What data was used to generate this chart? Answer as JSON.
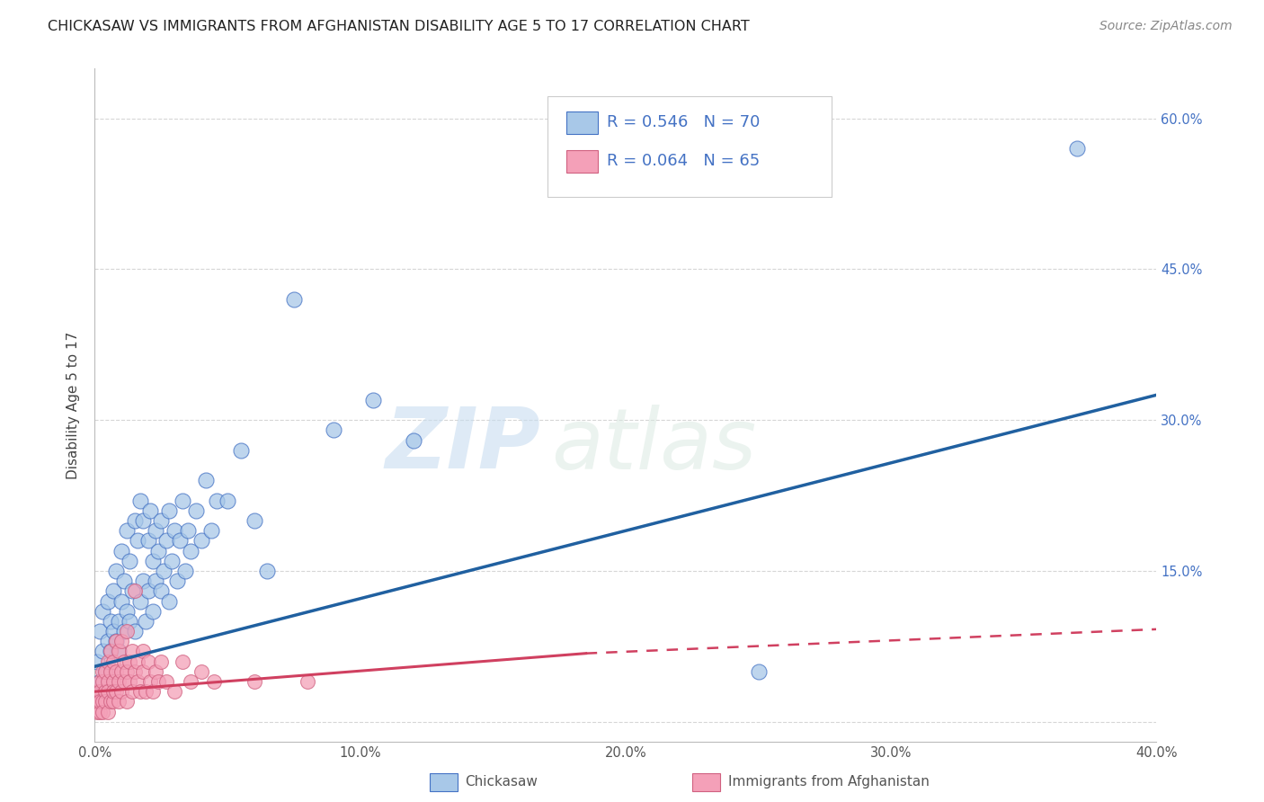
{
  "title": "CHICKASAW VS IMMIGRANTS FROM AFGHANISTAN DISABILITY AGE 5 TO 17 CORRELATION CHART",
  "source": "Source: ZipAtlas.com",
  "ylabel": "Disability Age 5 to 17",
  "legend_label1": "Chickasaw",
  "legend_label2": "Immigrants from Afghanistan",
  "R1": 0.546,
  "N1": 70,
  "R2": 0.064,
  "N2": 65,
  "color1": "#a8c8e8",
  "color2": "#f4a0b8",
  "edge_color1": "#4472c4",
  "edge_color2": "#d06080",
  "line_color1": "#2060a0",
  "line_color2": "#d04060",
  "watermark_color": "#d8e8f4",
  "xmin": 0.0,
  "xmax": 0.4,
  "ymin": -0.02,
  "ymax": 0.65,
  "xticks": [
    0.0,
    0.1,
    0.2,
    0.3,
    0.4
  ],
  "xtick_labels": [
    "0.0%",
    "10.0%",
    "20.0%",
    "30.0%",
    "40.0%"
  ],
  "yticks": [
    0.0,
    0.15,
    0.3,
    0.45,
    0.6
  ],
  "ytick_right_labels": [
    "",
    "15.0%",
    "30.0%",
    "45.0%",
    "60.0%"
  ],
  "blue_scatter_x": [
    0.001,
    0.002,
    0.002,
    0.003,
    0.003,
    0.004,
    0.005,
    0.005,
    0.006,
    0.006,
    0.007,
    0.007,
    0.008,
    0.008,
    0.009,
    0.009,
    0.01,
    0.01,
    0.011,
    0.011,
    0.012,
    0.012,
    0.013,
    0.013,
    0.014,
    0.015,
    0.015,
    0.016,
    0.017,
    0.017,
    0.018,
    0.018,
    0.019,
    0.02,
    0.02,
    0.021,
    0.022,
    0.022,
    0.023,
    0.023,
    0.024,
    0.025,
    0.025,
    0.026,
    0.027,
    0.028,
    0.028,
    0.029,
    0.03,
    0.031,
    0.032,
    0.033,
    0.034,
    0.035,
    0.036,
    0.038,
    0.04,
    0.042,
    0.044,
    0.046,
    0.05,
    0.055,
    0.06,
    0.065,
    0.075,
    0.09,
    0.105,
    0.12,
    0.25,
    0.37
  ],
  "blue_scatter_y": [
    0.06,
    0.04,
    0.09,
    0.07,
    0.11,
    0.05,
    0.08,
    0.12,
    0.07,
    0.1,
    0.09,
    0.13,
    0.08,
    0.15,
    0.1,
    0.07,
    0.12,
    0.17,
    0.09,
    0.14,
    0.11,
    0.19,
    0.1,
    0.16,
    0.13,
    0.2,
    0.09,
    0.18,
    0.12,
    0.22,
    0.14,
    0.2,
    0.1,
    0.18,
    0.13,
    0.21,
    0.16,
    0.11,
    0.19,
    0.14,
    0.17,
    0.13,
    0.2,
    0.15,
    0.18,
    0.21,
    0.12,
    0.16,
    0.19,
    0.14,
    0.18,
    0.22,
    0.15,
    0.19,
    0.17,
    0.21,
    0.18,
    0.24,
    0.19,
    0.22,
    0.22,
    0.27,
    0.2,
    0.15,
    0.42,
    0.29,
    0.32,
    0.28,
    0.05,
    0.57
  ],
  "pink_scatter_x": [
    0.001,
    0.001,
    0.001,
    0.002,
    0.002,
    0.002,
    0.002,
    0.003,
    0.003,
    0.003,
    0.003,
    0.004,
    0.004,
    0.004,
    0.005,
    0.005,
    0.005,
    0.005,
    0.006,
    0.006,
    0.006,
    0.007,
    0.007,
    0.007,
    0.007,
    0.008,
    0.008,
    0.008,
    0.009,
    0.009,
    0.009,
    0.01,
    0.01,
    0.01,
    0.011,
    0.011,
    0.012,
    0.012,
    0.012,
    0.013,
    0.013,
    0.014,
    0.014,
    0.015,
    0.015,
    0.016,
    0.016,
    0.017,
    0.018,
    0.018,
    0.019,
    0.02,
    0.021,
    0.022,
    0.023,
    0.024,
    0.025,
    0.027,
    0.03,
    0.033,
    0.036,
    0.04,
    0.045,
    0.06,
    0.08
  ],
  "pink_scatter_y": [
    0.01,
    0.03,
    0.02,
    0.04,
    0.01,
    0.03,
    0.02,
    0.05,
    0.02,
    0.04,
    0.01,
    0.03,
    0.05,
    0.02,
    0.04,
    0.01,
    0.06,
    0.03,
    0.05,
    0.02,
    0.07,
    0.04,
    0.02,
    0.06,
    0.03,
    0.05,
    0.08,
    0.03,
    0.04,
    0.07,
    0.02,
    0.05,
    0.03,
    0.08,
    0.04,
    0.06,
    0.05,
    0.02,
    0.09,
    0.04,
    0.06,
    0.03,
    0.07,
    0.05,
    0.13,
    0.04,
    0.06,
    0.03,
    0.07,
    0.05,
    0.03,
    0.06,
    0.04,
    0.03,
    0.05,
    0.04,
    0.06,
    0.04,
    0.03,
    0.06,
    0.04,
    0.05,
    0.04,
    0.04,
    0.04
  ],
  "blue_line": [
    0.0,
    0.4,
    0.055,
    0.325
  ],
  "pink_solid_line": [
    0.0,
    0.185,
    0.03,
    0.068
  ],
  "pink_dashed_line": [
    0.185,
    0.4,
    0.068,
    0.092
  ],
  "background_color": "#ffffff",
  "grid_color": "#cccccc",
  "title_fontsize": 11.5,
  "source_fontsize": 10,
  "ylabel_fontsize": 11,
  "tick_fontsize": 10.5,
  "legend_fontsize": 13
}
